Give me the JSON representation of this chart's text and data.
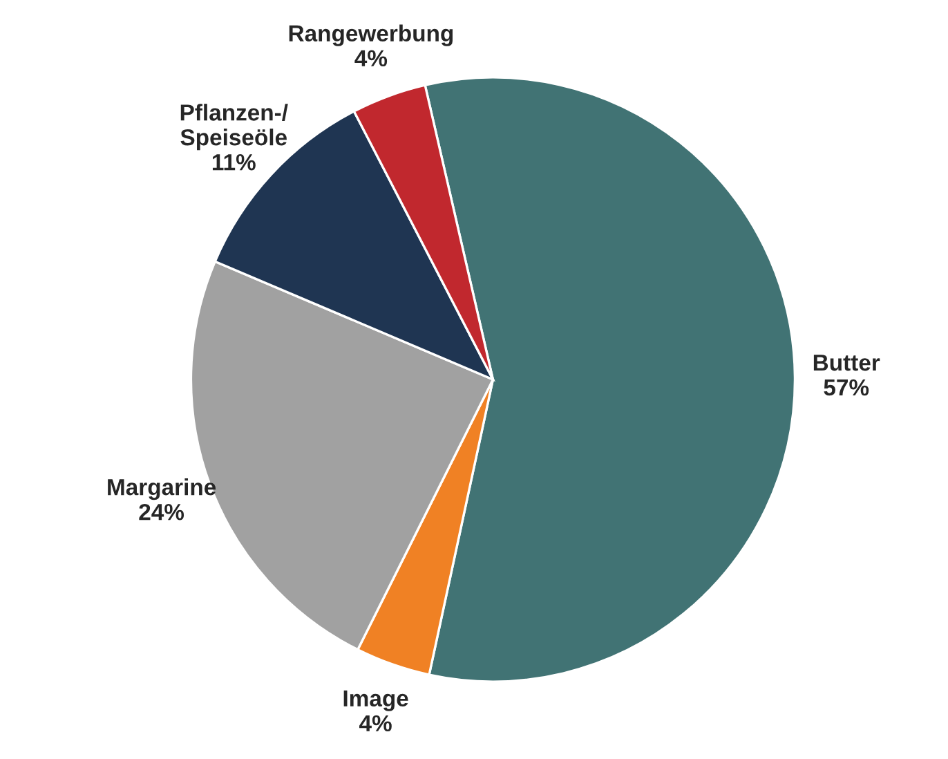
{
  "chart_data": {
    "type": "pie",
    "categories": [
      "Butter",
      "Image",
      "Margarine",
      "Pflanzen-/\nSpeiseöle",
      "Rangewerbung"
    ],
    "values": [
      57,
      4,
      24,
      11,
      4
    ],
    "colors": [
      "#417374",
      "#f08124",
      "#a1a1a1",
      "#1f3552",
      "#c1282e"
    ],
    "value_labels": [
      "57%",
      "4%",
      "24%",
      "11%",
      "4%"
    ]
  }
}
